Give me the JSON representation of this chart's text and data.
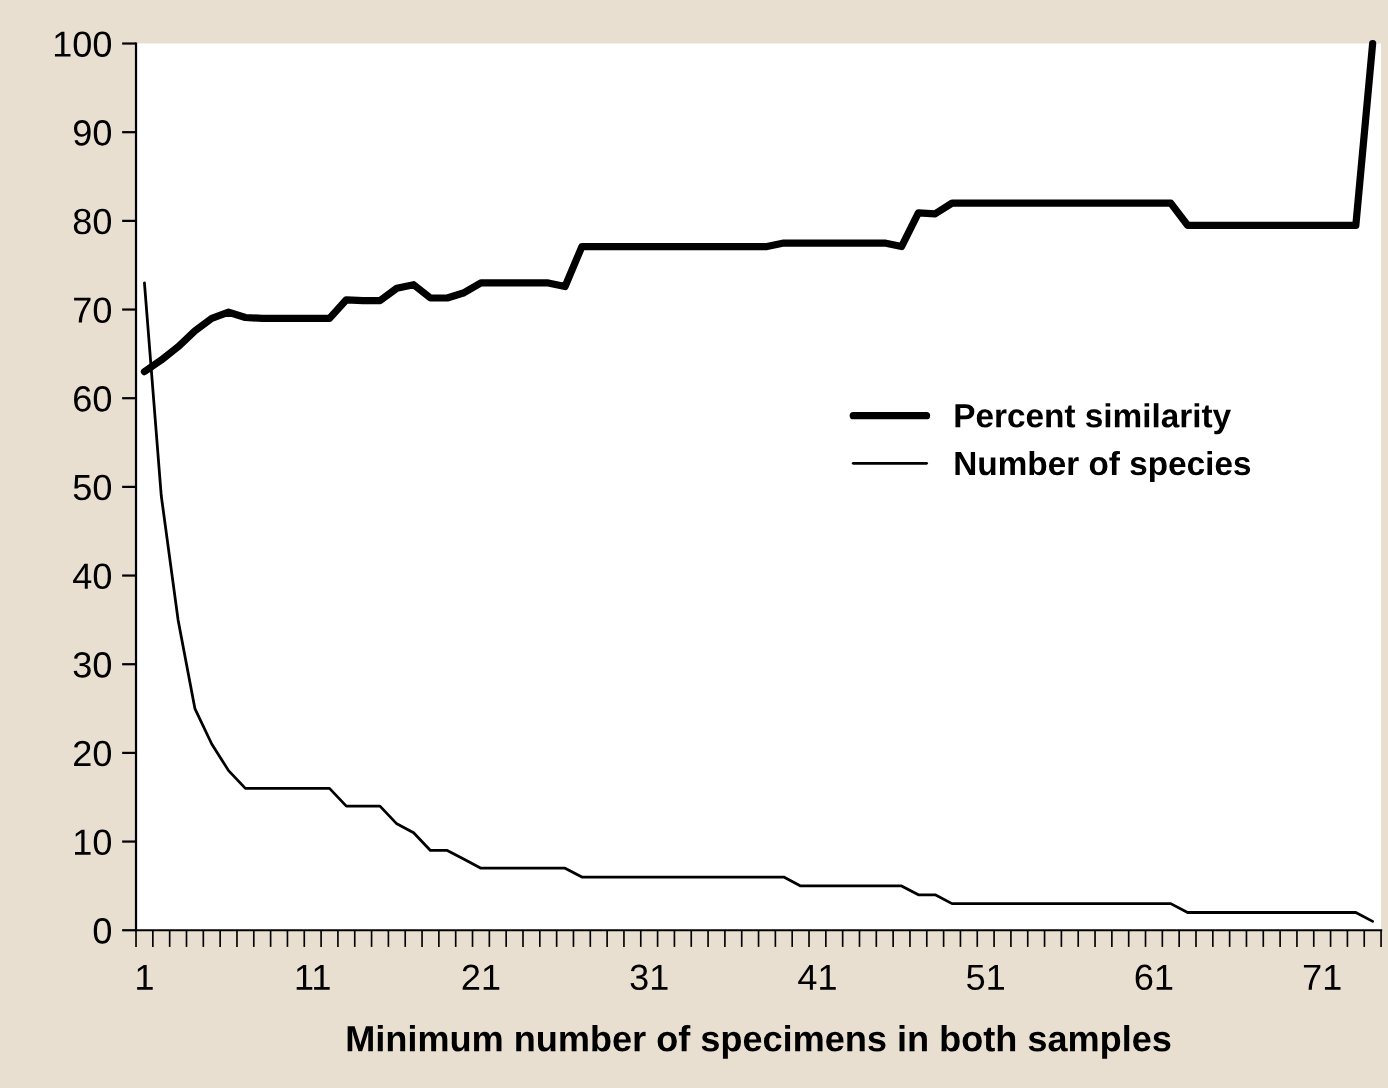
{
  "chart_data": {
    "type": "line",
    "xlabel": "Minimum number of specimens in both samples",
    "categories": [
      "1",
      null,
      null,
      null,
      null,
      null,
      null,
      null,
      null,
      null,
      "11",
      null,
      null,
      null,
      null,
      null,
      null,
      null,
      null,
      null,
      "21",
      null,
      null,
      null,
      null,
      null,
      null,
      null,
      null,
      null,
      "31",
      null,
      null,
      null,
      null,
      null,
      null,
      null,
      null,
      null,
      "41",
      null,
      null,
      null,
      null,
      null,
      null,
      null,
      null,
      null,
      "51",
      null,
      null,
      null,
      null,
      null,
      null,
      null,
      null,
      null,
      "61",
      null,
      null,
      null,
      null,
      null,
      null,
      null,
      null,
      null,
      "71",
      null,
      null,
      null
    ],
    "series": [
      {
        "name": "Percent similarity",
        "color": "#000000",
        "values": [
          63,
          64.3,
          65.8,
          67.6,
          69,
          69.7,
          69.1,
          69,
          69,
          69,
          69,
          69,
          71.1,
          71,
          71,
          72.4,
          72.8,
          71.3,
          71.3,
          71.9,
          73,
          73,
          73,
          73,
          73,
          72.6,
          77.1,
          77.1,
          77.1,
          77.1,
          77.1,
          77.1,
          77.1,
          77.1,
          77.1,
          77.1,
          77.1,
          77.1,
          77.5,
          77.5,
          77.5,
          77.5,
          77.5,
          77.5,
          77.5,
          77.1,
          80.9,
          80.8,
          82,
          82,
          82,
          82,
          82,
          82,
          82,
          82,
          82,
          82,
          82,
          82,
          82,
          82,
          79.5,
          79.5,
          79.5,
          79.5,
          79.5,
          79.5,
          79.5,
          79.5,
          79.5,
          79.5,
          79.5,
          100
        ]
      },
      {
        "name": "Number of species",
        "color": "#000000",
        "values": [
          73,
          49,
          35,
          25,
          21,
          18,
          16,
          16,
          16,
          16,
          16,
          16,
          14,
          14,
          14,
          12,
          11,
          9,
          9,
          8,
          7,
          7,
          7,
          7,
          7,
          7,
          6,
          6,
          6,
          6,
          6,
          6,
          6,
          6,
          6,
          6,
          6,
          6,
          6,
          5,
          5,
          5,
          5,
          5,
          5,
          5,
          4,
          4,
          3,
          3,
          3,
          3,
          3,
          3,
          3,
          3,
          3,
          3,
          3,
          3,
          3,
          3,
          2,
          2,
          2,
          2,
          2,
          2,
          2,
          2,
          2,
          2,
          2,
          1
        ]
      }
    ],
    "ylim": [
      0,
      100
    ],
    "yticks": [
      0,
      10,
      20,
      30,
      40,
      50,
      60,
      70,
      80,
      90,
      100
    ],
    "legend": "right",
    "grid": false,
    "marker": "none",
    "line_style": "solid"
  }
}
